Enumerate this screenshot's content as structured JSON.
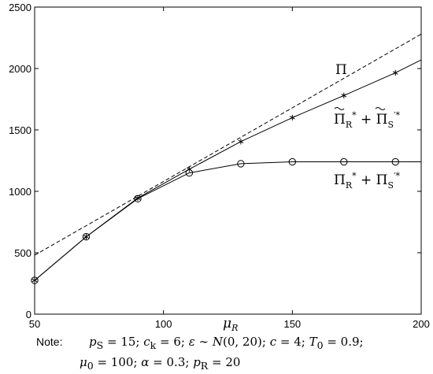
{
  "chart_data": {
    "type": "line",
    "xlabel": "μ_R",
    "xlim": [
      50,
      200
    ],
    "ylim": [
      0,
      2500
    ],
    "xticks": [
      50,
      100,
      150,
      200
    ],
    "yticks": [
      0,
      500,
      1000,
      1500,
      2000,
      2500
    ],
    "grid": false,
    "series": [
      {
        "name": "Π",
        "style": "dashed",
        "x": [
          50,
          200
        ],
        "y": [
          480,
          2280
        ]
      },
      {
        "name": "Π̃*_R + Π̃′*_S",
        "style": "solid",
        "marker": "star",
        "x": [
          50,
          70,
          90,
          110,
          130,
          150,
          170,
          190,
          200
        ],
        "y": [
          275,
          630,
          945,
          1180,
          1405,
          1600,
          1780,
          1965,
          2070
        ]
      },
      {
        "name": "Π*_R + Π′*_S",
        "style": "solid",
        "marker": "circle",
        "x": [
          50,
          70,
          90,
          110,
          130,
          150,
          170,
          190,
          200
        ],
        "y": [
          275,
          630,
          940,
          1150,
          1225,
          1240,
          1240,
          1240,
          1240
        ]
      }
    ],
    "note": {
      "label": "Note:",
      "line1": "p_S = 15; c_k = 6; ε ∼ N(0, 20); c = 4; T_0 = 0.9;",
      "line2": "μ_0 = 100; α = 0.3; p_R = 20"
    }
  }
}
